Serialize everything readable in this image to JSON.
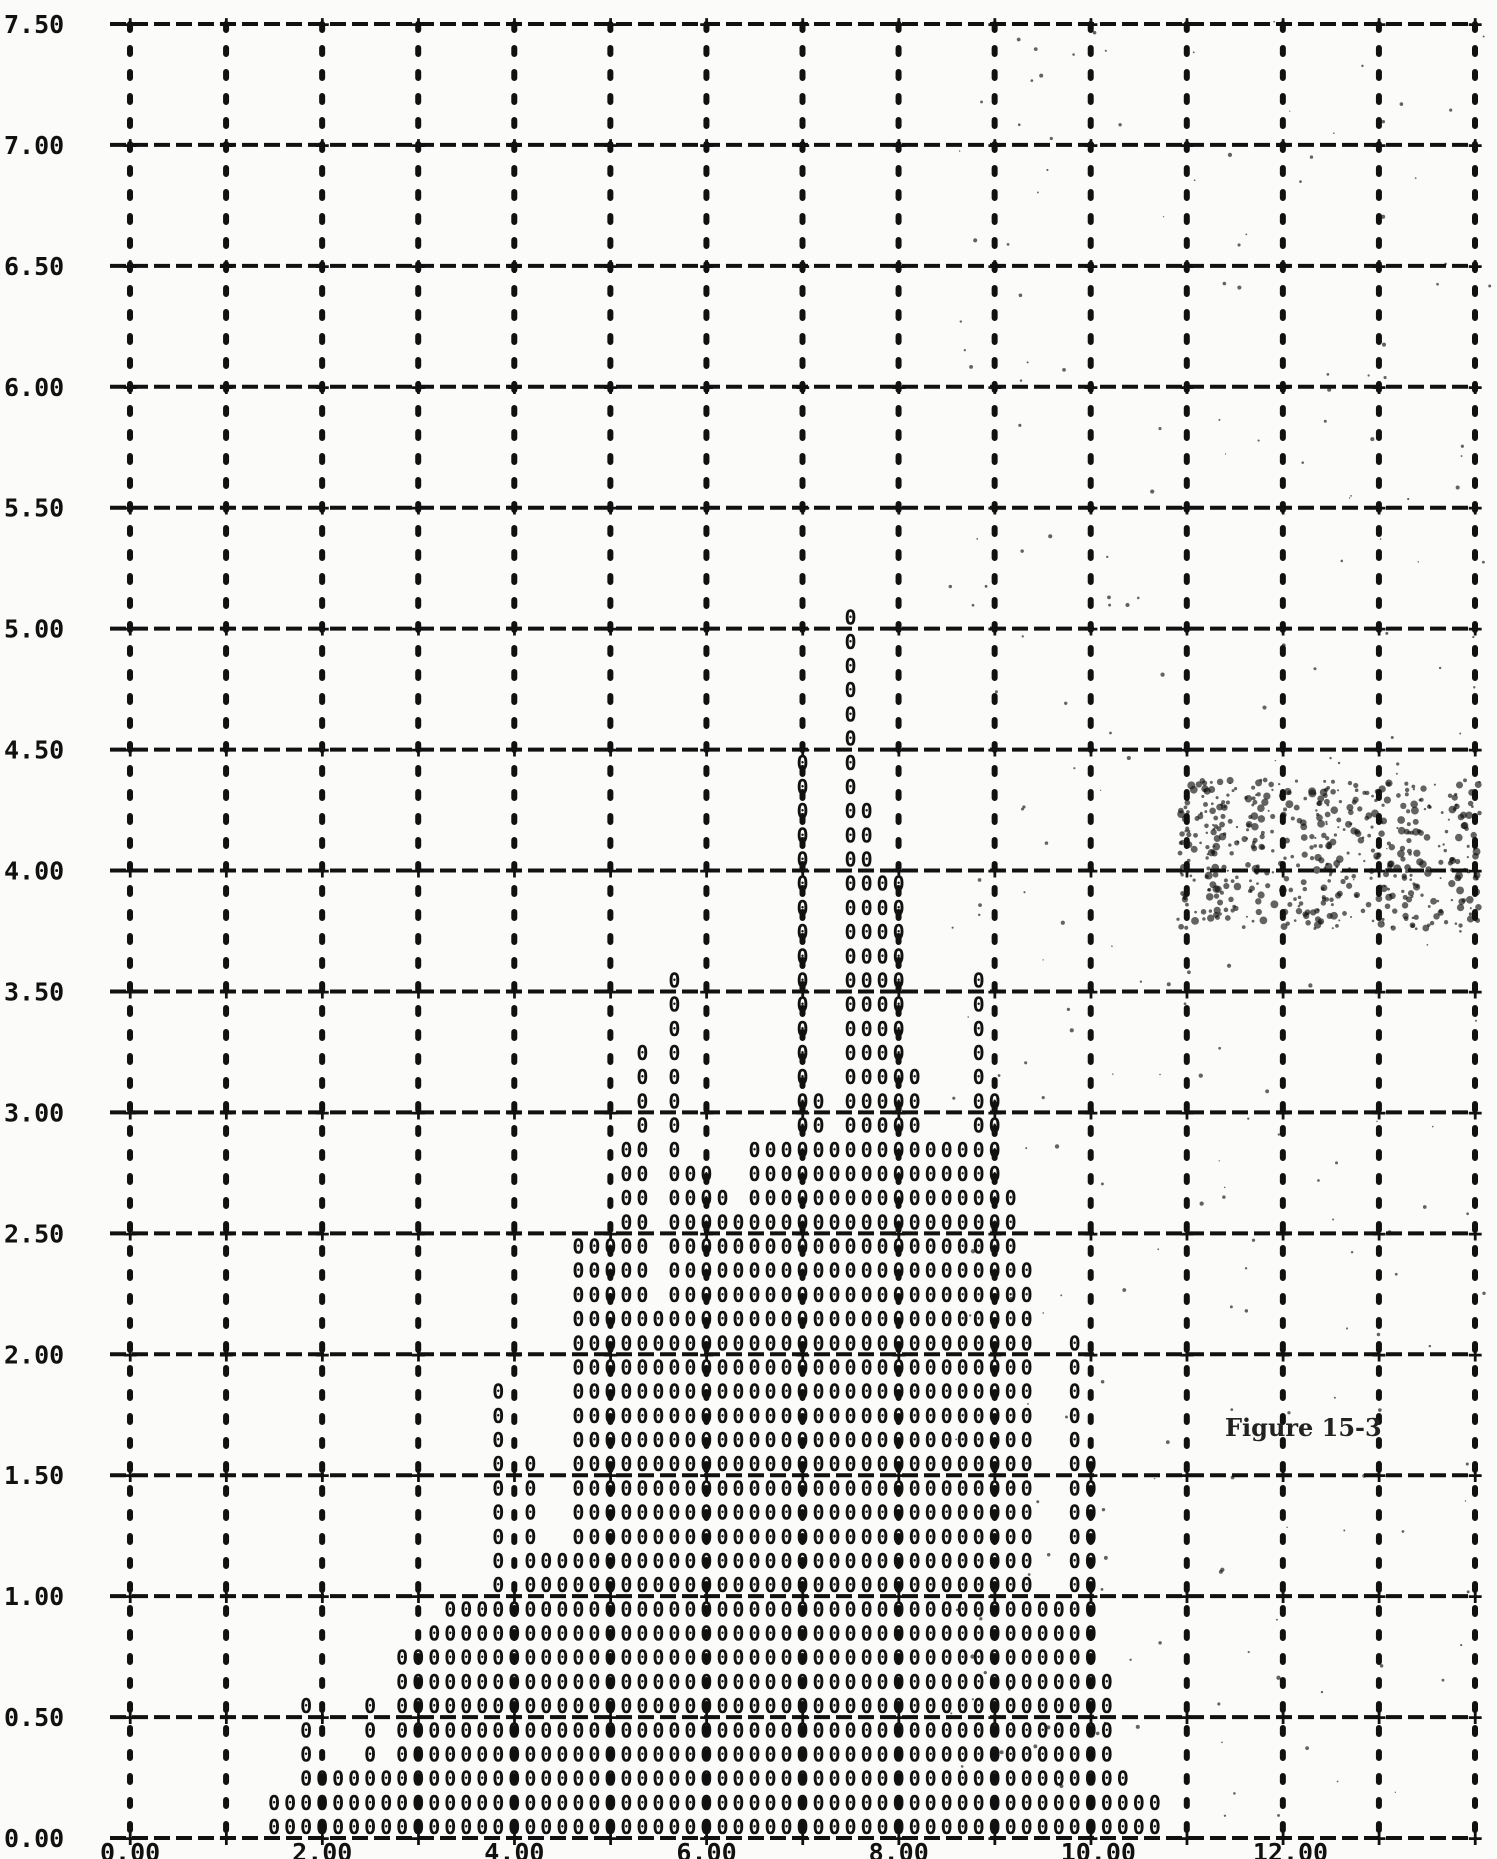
{
  "chart_data": {
    "type": "bar",
    "title": "",
    "xlabel": "",
    "ylabel": "",
    "xlim": [
      0,
      14
    ],
    "ylim": [
      0,
      7.5
    ],
    "grid": true,
    "legend": "none",
    "marker_glyph": "0",
    "x_ticks": [
      "0.00",
      "2.00",
      "4.00",
      "6.00",
      "8.00",
      "10.00",
      "12.00"
    ],
    "y_ticks": [
      "0.00",
      "0.50",
      "1.00",
      "1.50",
      "2.00",
      "2.50",
      "3.00",
      "3.50",
      "4.00",
      "4.50",
      "5.00",
      "5.50",
      "6.00",
      "6.50",
      "7.00",
      "7.50"
    ],
    "annotation": "Figure 15-3",
    "x": [
      1.5,
      1.667,
      1.833,
      2.0,
      2.167,
      2.333,
      2.5,
      2.667,
      2.833,
      3.0,
      3.167,
      3.333,
      3.5,
      3.667,
      3.833,
      4.0,
      4.167,
      4.333,
      4.5,
      4.667,
      4.833,
      5.0,
      5.167,
      5.333,
      5.5,
      5.667,
      5.833,
      6.0,
      6.167,
      6.333,
      6.5,
      6.667,
      6.833,
      7.0,
      7.167,
      7.333,
      7.5,
      7.667,
      7.833,
      8.0,
      8.167,
      8.333,
      8.5,
      8.667,
      8.833,
      9.0,
      9.167,
      9.333,
      9.5,
      9.667,
      9.833,
      10.0,
      10.167,
      10.333,
      10.5,
      10.667
    ],
    "values": [
      0.2,
      0.2,
      0.6,
      0.3,
      0.3,
      0.3,
      0.6,
      0.3,
      0.8,
      0.8,
      0.9,
      1.0,
      1.0,
      1.0,
      1.85,
      1.0,
      1.55,
      1.2,
      1.2,
      2.5,
      2.5,
      2.5,
      2.9,
      3.3,
      2.2,
      3.6,
      2.8,
      2.8,
      2.7,
      2.6,
      2.9,
      2.9,
      2.9,
      4.5,
      3.1,
      2.9,
      5.1,
      4.3,
      4.0,
      4.0,
      3.2,
      2.9,
      2.9,
      2.9,
      3.6,
      3.1,
      2.7,
      2.4,
      1.0,
      1.0,
      2.1,
      1.6,
      0.7,
      0.3,
      0.2,
      0.2
    ]
  }
}
